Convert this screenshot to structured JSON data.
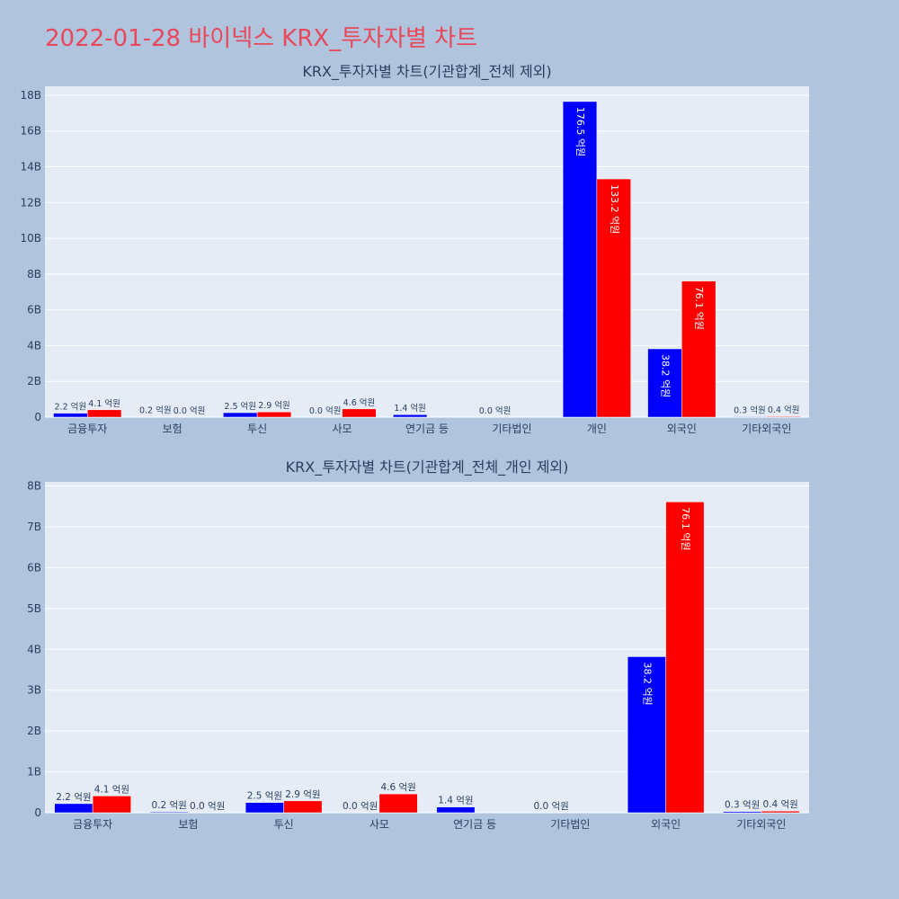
{
  "page": {
    "title": "2022-01-28 바이넥스 KRX_투자자별 차트"
  },
  "chart_data": [
    {
      "type": "bar",
      "title": "KRX_투자자별 차트(기관합계_전체 제외)",
      "categories": [
        "금융투자",
        "보험",
        "투신",
        "사모",
        "연기금 등",
        "기타법인",
        "개인",
        "외국인",
        "기타외국인"
      ],
      "series": [
        {
          "color": "#0000ff",
          "values": [
            222000000,
            20000000,
            250000000,
            0,
            140000000,
            0,
            17650000000,
            3820000000,
            30000000
          ],
          "labels": [
            "2.2 억원",
            "0.2 억원",
            "2.5 억원",
            "0.0 억원",
            "1.4 억원",
            "0.0 억원",
            "176.5 억원",
            "38.2 억원",
            "0.3 억원"
          ]
        },
        {
          "color": "#ff0000",
          "values": [
            410000000,
            0,
            290000000,
            460000000,
            null,
            null,
            13320000000,
            7610000000,
            40000000
          ],
          "labels": [
            "4.1 억원",
            "0.0 억원",
            "2.9 억원",
            "4.6 억원",
            "",
            "",
            "133.2 억원",
            "76.1 억원",
            "0.4 억원"
          ]
        }
      ],
      "ylim": [
        0,
        18500000000
      ],
      "yticks": [
        0,
        2000000000,
        4000000000,
        6000000000,
        8000000000,
        10000000000,
        12000000000,
        14000000000,
        16000000000,
        18000000000
      ],
      "ytick_labels": [
        "0",
        "2B",
        "4B",
        "6B",
        "8B",
        "10B",
        "12B",
        "14B",
        "16B",
        "18B"
      ],
      "grid": true
    },
    {
      "type": "bar",
      "title": "KRX_투자자별 차트(기관합계_전체_개인 제외)",
      "categories": [
        "금융투자",
        "보험",
        "투신",
        "사모",
        "연기금 등",
        "기타법인",
        "외국인",
        "기타외국인"
      ],
      "series": [
        {
          "color": "#0000ff",
          "values": [
            222000000,
            20000000,
            250000000,
            0,
            140000000,
            0,
            3820000000,
            30000000
          ],
          "labels": [
            "2.2 억원",
            "0.2 억원",
            "2.5 억원",
            "0.0 억원",
            "1.4 억원",
            "0.0 억원",
            "38.2 억원",
            "0.3 억원"
          ]
        },
        {
          "color": "#ff0000",
          "values": [
            410000000,
            0,
            290000000,
            460000000,
            null,
            null,
            7610000000,
            40000000
          ],
          "labels": [
            "4.1 억원",
            "0.0 억원",
            "2.9 억원",
            "4.6 억원",
            "",
            "",
            "76.1 억원",
            "0.4 억원"
          ]
        }
      ],
      "ylim": [
        0,
        8100000000
      ],
      "yticks": [
        0,
        1000000000,
        2000000000,
        3000000000,
        4000000000,
        5000000000,
        6000000000,
        7000000000,
        8000000000
      ],
      "ytick_labels": [
        "0",
        "1B",
        "2B",
        "3B",
        "4B",
        "5B",
        "6B",
        "7B",
        "8B"
      ],
      "grid": true
    }
  ]
}
